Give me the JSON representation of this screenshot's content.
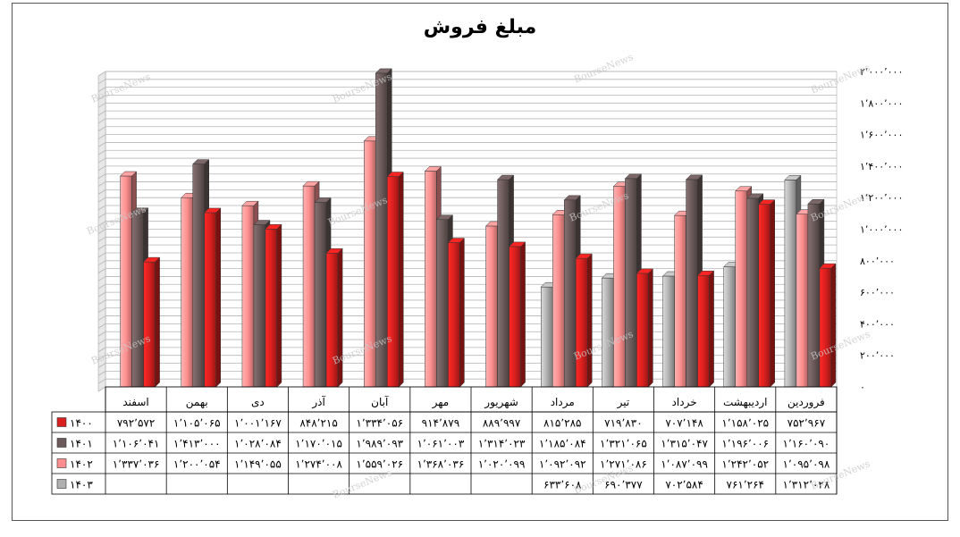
{
  "chart_data": {
    "type": "bar",
    "title": "مبلغ فروش",
    "categories": [
      "فروردین",
      "اردیبهشت",
      "خرداد",
      "تیر",
      "مرداد",
      "شهریور",
      "مهر",
      "آبان",
      "آذر",
      "دی",
      "بهمن",
      "اسفند"
    ],
    "series": [
      {
        "name": "۱۴۰۰",
        "color": "#d9201e",
        "values": [
          752967,
          1158025,
          707148,
          719830,
          815285,
          889997,
          914879,
          1334056,
          848215,
          1001167,
          1105065,
          792572
        ],
        "labels": [
          "۷۵۲٬۹۶۷",
          "۱٬۱۵۸٬۰۲۵",
          "۷۰۷٬۱۴۸",
          "۷۱۹٬۸۳۰",
          "۸۱۵٬۲۸۵",
          "۸۸۹٬۹۹۷",
          "۹۱۴٬۸۷۹",
          "۱٬۳۳۴٬۰۵۶",
          "۸۴۸٬۲۱۵",
          "۱٬۰۰۱٬۱۶۷",
          "۱٬۱۰۵٬۰۶۵",
          "۷۹۲٬۵۷۲"
        ]
      },
      {
        "name": "۱۴۰۱",
        "color": "#6b5a5a",
        "values": [
          1160090,
          1196006,
          1315047,
          1321065,
          1185084,
          1314023,
          1061003,
          1989093,
          1170015,
          1028084,
          1413000,
          1106041
        ],
        "labels": [
          "۱٬۱۶۰٬۰۹۰",
          "۱٬۱۹۶٬۰۰۶",
          "۱٬۳۱۵٬۰۴۷",
          "۱٬۳۲۱٬۰۶۵",
          "۱٬۱۸۵٬۰۸۴",
          "۱٬۳۱۴٬۰۲۳",
          "۱٬۰۶۱٬۰۰۳",
          "۱٬۹۸۹٬۰۹۳",
          "۱٬۱۷۰٬۰۱۵",
          "۱٬۰۲۸٬۰۸۴",
          "۱٬۴۱۳٬۰۰۰",
          "۱٬۱۰۶٬۰۴۱"
        ]
      },
      {
        "name": "۱۴۰۲",
        "color": "#ff8f8f",
        "values": [
          1095098,
          1242052,
          1087099,
          1271086,
          1092092,
          1020099,
          1368036,
          1559026,
          1274008,
          1149055,
          1200054,
          1337036
        ],
        "labels": [
          "۱٬۰۹۵٬۰۹۸",
          "۱٬۲۴۲٬۰۵۲",
          "۱٬۰۸۷٬۰۹۹",
          "۱٬۲۷۱٬۰۸۶",
          "۱٬۰۹۲٬۰۹۲",
          "۱٬۰۲۰٬۰۹۹",
          "۱٬۳۶۸٬۰۳۶",
          "۱٬۵۵۹٬۰۲۶",
          "۱٬۲۷۴٬۰۰۸",
          "۱٬۱۴۹٬۰۵۵",
          "۱٬۲۰۰٬۰۵۴",
          "۱٬۳۳۷٬۰۳۶"
        ]
      },
      {
        "name": "۱۴۰۳",
        "color": "#b0b0b0",
        "values": [
          1312028,
          761264,
          702584,
          690377,
          633608,
          null,
          null,
          null,
          null,
          null,
          null,
          null
        ],
        "labels": [
          "۱٬۳۱۲٬۰۲۸",
          "۷۶۱٬۲۶۴",
          "۷۰۲٬۵۸۴",
          "۶۹۰٬۳۷۷",
          "۶۳۳٬۶۰۸",
          "",
          "",
          "",
          "",
          "",
          "",
          ""
        ]
      }
    ],
    "ylim": [
      0,
      2000000
    ],
    "yticks": [
      "۰",
      "۲۰۰٬۰۰۰",
      "۴۰۰٬۰۰۰",
      "۶۰۰٬۰۰۰",
      "۸۰۰٬۰۰۰",
      "۱٬۰۰۰٬۰۰۰",
      "۱٬۲۰۰٬۰۰۰",
      "۱٬۴۰۰٬۰۰۰",
      "۱٬۶۰۰٬۰۰۰",
      "۱٬۸۰۰٬۰۰۰",
      "۲٬۰۰۰٬۰۰۰"
    ],
    "ytick_values": [
      0,
      200000,
      400000,
      600000,
      800000,
      1000000,
      1200000,
      1400000,
      1600000,
      1800000,
      2000000
    ],
    "grid": true,
    "legend": "data-table-bottom",
    "watermark": "BourseNews"
  }
}
